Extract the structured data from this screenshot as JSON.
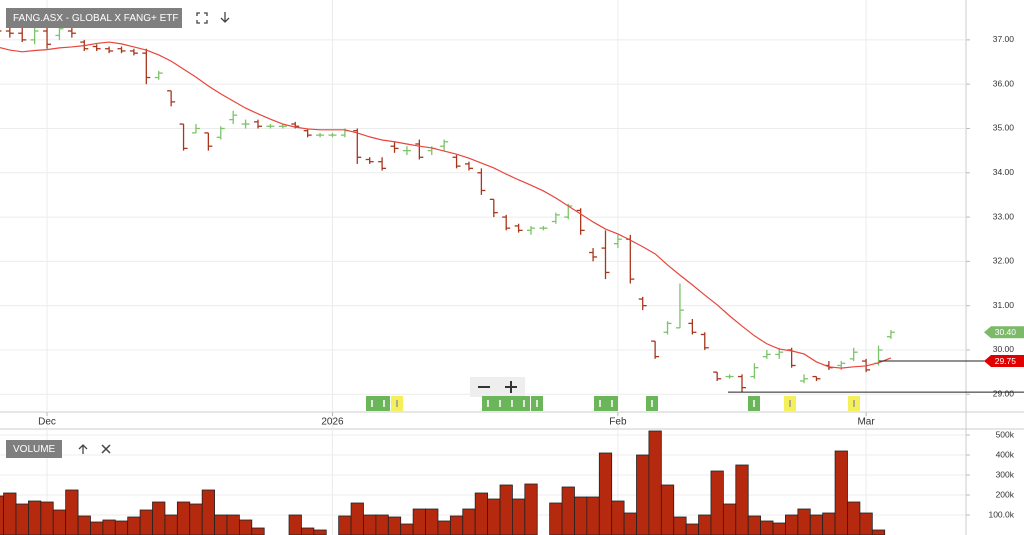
{
  "chart_data": [
    {
      "type": "ohlc",
      "title": "FANG.ASX - GLOBAL X FANG+ ETF",
      "categories": [
        null,
        null,
        null,
        null,
        "Dec",
        null,
        null,
        null,
        null,
        null,
        null,
        null,
        null,
        null,
        null,
        null,
        null,
        null,
        null,
        null,
        null,
        null,
        null,
        null,
        null,
        null,
        null,
        "2026",
        null,
        null,
        null,
        null,
        null,
        null,
        null,
        null,
        null,
        null,
        null,
        null,
        null,
        null,
        null,
        null,
        null,
        null,
        null,
        null,
        null,
        null,
        "Feb",
        null,
        null,
        null,
        null,
        null,
        null,
        null,
        null,
        null,
        null,
        null,
        null,
        null,
        null,
        null,
        null,
        null,
        null,
        null,
        "Mar",
        null,
        null
      ],
      "open": [
        37.25,
        37.2,
        37.15,
        37.0,
        37.2,
        37.1,
        37.2,
        36.95,
        36.85,
        36.8,
        36.8,
        36.75,
        36.7,
        36.15,
        35.85,
        35.1,
        34.9,
        34.9,
        34.8,
        35.2,
        35.1,
        35.15,
        35.05,
        35.05,
        35.1,
        34.95,
        34.85,
        34.85,
        34.85,
        34.95,
        34.3,
        34.25,
        34.6,
        34.5,
        34.65,
        34.5,
        34.6,
        34.35,
        34.2,
        34.0,
        33.4,
        33.0,
        32.8,
        32.7,
        32.75,
        32.9,
        33.0,
        33.15,
        32.2,
        32.3,
        32.4,
        32.5,
        31.15,
        30.2,
        30.4,
        30.5,
        30.6,
        30.35,
        29.5,
        29.4,
        29.4,
        29.4,
        29.85,
        29.9,
        30.0,
        29.3,
        29.4,
        29.65,
        29.65,
        29.8,
        29.75,
        29.7,
        30.3
      ],
      "high": [
        37.35,
        37.3,
        37.35,
        37.3,
        37.5,
        37.3,
        37.35,
        37.0,
        36.9,
        36.85,
        36.85,
        36.8,
        36.8,
        36.3,
        35.85,
        35.1,
        35.1,
        34.9,
        35.05,
        35.4,
        35.2,
        35.2,
        35.1,
        35.1,
        35.15,
        35.0,
        34.9,
        34.9,
        35.0,
        35.0,
        34.35,
        34.35,
        34.7,
        34.6,
        34.75,
        34.6,
        34.75,
        34.4,
        34.25,
        34.1,
        33.4,
        33.05,
        32.85,
        32.8,
        32.8,
        33.1,
        33.3,
        33.2,
        32.3,
        32.7,
        32.6,
        32.6,
        31.2,
        30.2,
        30.65,
        31.5,
        30.7,
        30.4,
        29.5,
        29.45,
        29.45,
        29.7,
        30.0,
        30.05,
        30.05,
        29.45,
        29.4,
        29.75,
        29.75,
        30.05,
        29.8,
        30.1,
        30.45
      ],
      "low": [
        37.15,
        37.05,
        36.95,
        36.9,
        36.8,
        37.0,
        37.05,
        36.75,
        36.75,
        36.7,
        36.7,
        36.65,
        36.0,
        36.1,
        35.5,
        34.5,
        34.9,
        34.5,
        34.75,
        35.1,
        35.0,
        35.0,
        35.0,
        35.0,
        35.0,
        34.8,
        34.8,
        34.8,
        34.8,
        34.2,
        34.2,
        34.05,
        34.45,
        34.4,
        34.3,
        34.4,
        34.5,
        34.1,
        34.05,
        33.5,
        33.0,
        32.7,
        32.65,
        32.6,
        32.7,
        32.85,
        32.95,
        32.6,
        32.0,
        31.6,
        32.3,
        31.5,
        30.9,
        29.8,
        30.35,
        30.5,
        30.35,
        30.0,
        29.3,
        29.35,
        29.05,
        29.35,
        29.8,
        29.8,
        29.6,
        29.25,
        29.3,
        29.55,
        29.55,
        29.75,
        29.5,
        29.65,
        30.25
      ],
      "close": [
        37.2,
        37.15,
        37.0,
        37.2,
        36.9,
        37.25,
        37.15,
        36.8,
        36.8,
        36.75,
        36.75,
        36.7,
        36.15,
        36.25,
        35.6,
        34.55,
        35.0,
        34.6,
        35.0,
        35.3,
        35.1,
        35.05,
        35.05,
        35.05,
        35.05,
        34.85,
        34.85,
        34.85,
        34.95,
        34.35,
        34.25,
        34.1,
        34.55,
        34.5,
        34.35,
        34.55,
        34.7,
        34.15,
        34.1,
        33.6,
        33.1,
        32.75,
        32.7,
        32.75,
        32.75,
        33.05,
        33.25,
        32.7,
        32.1,
        31.75,
        32.5,
        31.6,
        31.0,
        29.85,
        30.6,
        30.9,
        30.4,
        30.05,
        29.35,
        29.4,
        29.15,
        29.6,
        29.9,
        29.95,
        29.65,
        29.35,
        29.35,
        29.6,
        29.7,
        29.95,
        29.55,
        30.0,
        30.4
      ],
      "up_color": "#7cc36a",
      "down_color": "#a8361c",
      "moving_average": {
        "color": "#e8453c",
        "values": [
          36.84,
          36.77,
          36.73,
          36.76,
          36.78,
          36.82,
          36.84,
          36.87,
          36.92,
          36.95,
          36.91,
          36.84,
          36.77,
          36.66,
          36.52,
          36.34,
          36.16,
          35.96,
          35.78,
          35.62,
          35.46,
          35.33,
          35.21,
          35.1,
          35.03,
          34.99,
          34.97,
          34.97,
          34.97,
          34.9,
          34.81,
          34.74,
          34.7,
          34.65,
          34.6,
          34.56,
          34.49,
          34.42,
          34.33,
          34.22,
          34.11,
          33.97,
          33.84,
          33.72,
          33.59,
          33.43,
          33.25,
          33.07,
          32.89,
          32.73,
          32.62,
          32.48,
          32.33,
          32.17,
          31.92,
          31.69,
          31.47,
          31.24,
          31.02,
          30.77,
          30.54,
          30.32,
          30.14,
          30.02,
          29.98,
          29.91,
          29.73,
          29.62,
          29.59,
          29.62,
          29.64,
          29.71,
          29.82
        ]
      },
      "ylim": [
        28.6,
        37.9
      ],
      "yticks": [
        {
          "value": 29,
          "label": "29.00"
        },
        {
          "value": 30,
          "label": "30.00"
        },
        {
          "value": 31,
          "label": "31.00"
        },
        {
          "value": 32,
          "label": "32.00"
        },
        {
          "value": 33,
          "label": "33.00"
        },
        {
          "value": 34,
          "label": "34.00"
        },
        {
          "value": 35,
          "label": "35.00"
        },
        {
          "value": 36,
          "label": "36.00"
        },
        {
          "value": 37,
          "label": "37.00"
        }
      ],
      "grid": true,
      "price_badges": [
        {
          "value": 30.4,
          "label": "30.40",
          "color": "#7cb969"
        },
        {
          "value": 29.75,
          "label": "29.75",
          "color": "#e00000"
        }
      ],
      "levels": [
        29.05
      ]
    },
    {
      "type": "bar",
      "title": "VOLUME",
      "color": "#b52a0e",
      "values": [
        195000,
        210000,
        155000,
        170000,
        165000,
        125000,
        225000,
        95000,
        65000,
        75000,
        70000,
        90000,
        125000,
        165000,
        100000,
        165000,
        155000,
        225000,
        100000,
        100000,
        75000,
        35000,
        null,
        null,
        100000,
        35000,
        25000,
        null,
        95000,
        160000,
        100000,
        100000,
        90000,
        55000,
        130000,
        130000,
        70000,
        95000,
        130000,
        210000,
        180000,
        250000,
        180000,
        255000,
        null,
        160000,
        240000,
        190000,
        190000,
        410000,
        170000,
        110000,
        400000,
        520000,
        250000,
        90000,
        55000,
        100000,
        320000,
        155000,
        350000,
        95000,
        70000,
        60000,
        100000,
        130000,
        100000,
        110000,
        420000,
        165000,
        110000,
        25000,
        null
      ],
      "ylim": [
        0,
        530000
      ],
      "yticks": [
        {
          "value": 100000,
          "label": "100.0k"
        },
        {
          "value": 200000,
          "label": "200k"
        },
        {
          "value": 300000,
          "label": "300k"
        },
        {
          "value": 400000,
          "label": "400k"
        },
        {
          "value": 500000,
          "label": "500k"
        }
      ],
      "grid": true
    }
  ]
}
